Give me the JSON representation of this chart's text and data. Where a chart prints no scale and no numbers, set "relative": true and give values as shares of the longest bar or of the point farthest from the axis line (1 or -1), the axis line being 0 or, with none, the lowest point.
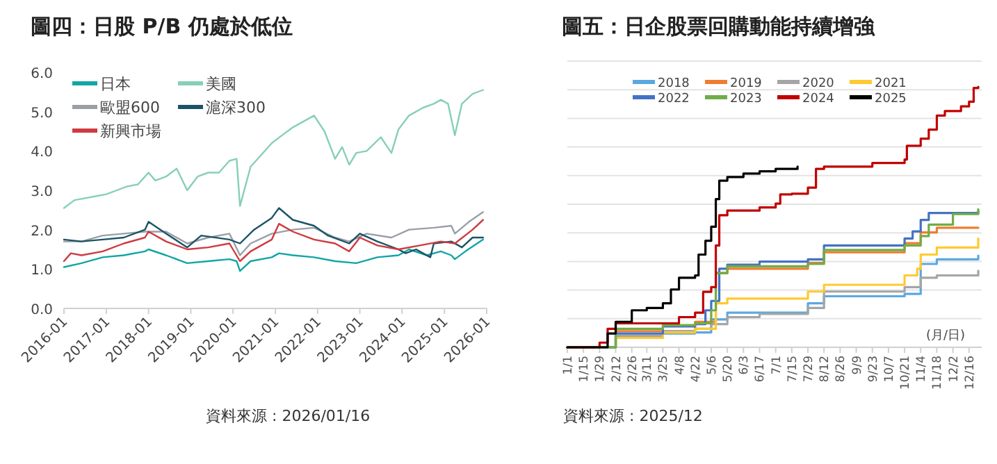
{
  "chart_data": [
    {
      "type": "line",
      "title": "圖四：日股 P/B 仍處於低位",
      "annotations": [
        "資料來源 : 2026/01/16"
      ],
      "legend": "top left",
      "grid": false,
      "xlim": [
        "2016-01",
        "2026-01"
      ],
      "xticks": [
        "2016-01",
        "2017-01",
        "2018-01",
        "2019-01",
        "2020-01",
        "2021-01",
        "2022-01",
        "2023-01",
        "2024-01",
        "2025-01",
        "2026-01"
      ],
      "ylim": [
        0,
        6
      ],
      "yticks": [
        {
          "value": 0,
          "label": "0.0"
        },
        {
          "value": 1,
          "label": "1.0"
        },
        {
          "value": 2,
          "label": "2.0"
        },
        {
          "value": 3,
          "label": "3.0"
        },
        {
          "value": 4,
          "label": "4.0"
        },
        {
          "value": 5,
          "label": "5.0"
        },
        {
          "value": 6,
          "label": "6.0"
        }
      ],
      "series": [
        {
          "name": "日本",
          "color": "#12a5a5",
          "x": [
            "2016-01",
            "2016-06",
            "2016-12",
            "2017-06",
            "2017-12",
            "2018-01",
            "2018-06",
            "2018-12",
            "2019-06",
            "2019-12",
            "2020-02",
            "2020-03",
            "2020-06",
            "2020-12",
            "2021-02",
            "2021-06",
            "2021-12",
            "2022-06",
            "2022-12",
            "2023-06",
            "2023-12",
            "2024-03",
            "2024-08",
            "2024-12",
            "2025-03",
            "2025-04",
            "2025-07",
            "2025-12"
          ],
          "values": [
            1.05,
            1.15,
            1.3,
            1.35,
            1.45,
            1.5,
            1.35,
            1.15,
            1.2,
            1.25,
            1.2,
            0.95,
            1.2,
            1.3,
            1.4,
            1.35,
            1.3,
            1.2,
            1.15,
            1.3,
            1.35,
            1.5,
            1.35,
            1.45,
            1.35,
            1.25,
            1.45,
            1.75
          ]
        },
        {
          "name": "美國",
          "color": "#86cfb8",
          "x": [
            "2016-01",
            "2016-04",
            "2016-07",
            "2016-10",
            "2017-01",
            "2017-04",
            "2017-07",
            "2017-10",
            "2018-01",
            "2018-03",
            "2018-06",
            "2018-09",
            "2018-12",
            "2019-03",
            "2019-06",
            "2019-09",
            "2019-12",
            "2020-02",
            "2020-03",
            "2020-06",
            "2020-09",
            "2020-12",
            "2021-03",
            "2021-06",
            "2021-09",
            "2021-12",
            "2022-03",
            "2022-06",
            "2022-08",
            "2022-10",
            "2022-12",
            "2023-03",
            "2023-07",
            "2023-10",
            "2023-12",
            "2024-03",
            "2024-07",
            "2024-10",
            "2024-12",
            "2025-02",
            "2025-04",
            "2025-06",
            "2025-09",
            "2025-12"
          ],
          "values": [
            2.55,
            2.75,
            2.8,
            2.85,
            2.9,
            3.0,
            3.1,
            3.15,
            3.45,
            3.25,
            3.35,
            3.55,
            3.0,
            3.35,
            3.45,
            3.45,
            3.75,
            3.8,
            2.6,
            3.6,
            3.9,
            4.2,
            4.4,
            4.6,
            4.75,
            4.9,
            4.5,
            3.8,
            4.1,
            3.65,
            3.95,
            4.0,
            4.35,
            3.95,
            4.55,
            4.9,
            5.1,
            5.2,
            5.3,
            5.2,
            4.4,
            5.2,
            5.45,
            5.55
          ]
        },
        {
          "name": "歐盟600",
          "color": "#9a9fa5",
          "x": [
            "2016-01",
            "2016-06",
            "2016-12",
            "2017-06",
            "2017-12",
            "2018-06",
            "2018-12",
            "2019-06",
            "2019-12",
            "2020-03",
            "2020-06",
            "2020-12",
            "2021-06",
            "2021-12",
            "2022-06",
            "2022-10",
            "2023-03",
            "2023-10",
            "2024-03",
            "2024-10",
            "2025-03",
            "2025-04",
            "2025-08",
            "2025-12"
          ],
          "values": [
            1.7,
            1.7,
            1.85,
            1.9,
            1.95,
            1.95,
            1.65,
            1.8,
            1.9,
            1.35,
            1.65,
            1.9,
            2.0,
            2.05,
            1.8,
            1.7,
            1.9,
            1.8,
            2.0,
            2.05,
            2.1,
            1.9,
            2.2,
            2.45
          ]
        },
        {
          "name": "滬深300",
          "color": "#1a5466",
          "x": [
            "2016-01",
            "2016-06",
            "2016-12",
            "2017-06",
            "2017-12",
            "2018-01",
            "2018-06",
            "2018-12",
            "2019-04",
            "2019-12",
            "2020-03",
            "2020-07",
            "2020-12",
            "2021-02",
            "2021-06",
            "2021-12",
            "2022-04",
            "2022-10",
            "2023-01",
            "2023-06",
            "2023-12",
            "2024-02",
            "2024-05",
            "2024-09",
            "2024-10",
            "2025-03",
            "2025-06",
            "2025-09",
            "2025-12"
          ],
          "values": [
            1.75,
            1.7,
            1.75,
            1.8,
            2.0,
            2.2,
            1.9,
            1.55,
            1.85,
            1.75,
            1.65,
            2.0,
            2.3,
            2.55,
            2.25,
            2.1,
            1.85,
            1.65,
            1.9,
            1.7,
            1.5,
            1.4,
            1.5,
            1.3,
            1.65,
            1.7,
            1.55,
            1.8,
            1.8
          ]
        },
        {
          "name": "新興市場",
          "color": "#cf3a40",
          "x": [
            "2016-01",
            "2016-03",
            "2016-06",
            "2016-12",
            "2017-06",
            "2017-12",
            "2018-01",
            "2018-06",
            "2018-12",
            "2019-06",
            "2019-12",
            "2020-03",
            "2020-06",
            "2020-12",
            "2021-02",
            "2021-06",
            "2021-12",
            "2022-06",
            "2022-10",
            "2023-01",
            "2023-06",
            "2023-12",
            "2024-06",
            "2024-12",
            "2025-04",
            "2025-09",
            "2025-12"
          ],
          "values": [
            1.2,
            1.4,
            1.35,
            1.45,
            1.65,
            1.8,
            1.95,
            1.7,
            1.5,
            1.55,
            1.65,
            1.2,
            1.45,
            1.75,
            2.15,
            1.95,
            1.75,
            1.65,
            1.45,
            1.8,
            1.6,
            1.5,
            1.6,
            1.7,
            1.65,
            2.0,
            2.25
          ]
        }
      ]
    },
    {
      "type": "step",
      "title": "圖五：日企股票回購動能持續增強",
      "annotations": [
        "(月/日)",
        "資料來源 : 2025/12"
      ],
      "legend": "top",
      "grid": "y",
      "relative": true,
      "tick_labels": "x",
      "xlim": [
        "--01-01",
        "--12-27"
      ],
      "xticks": [
        {
          "value": "--01-01",
          "label": "1/1"
        },
        {
          "value": "--01-15",
          "label": "1/15"
        },
        {
          "value": "--01-29",
          "label": "1/29"
        },
        {
          "value": "--02-12",
          "label": "2/12"
        },
        {
          "value": "--02-26",
          "label": "2/26"
        },
        {
          "value": "--03-11",
          "label": "3/11"
        },
        {
          "value": "--03-25",
          "label": "3/25"
        },
        {
          "value": "--04-08",
          "label": "4/8"
        },
        {
          "value": "--04-22",
          "label": "4/22"
        },
        {
          "value": "--05-06",
          "label": "5/6"
        },
        {
          "value": "--05-20",
          "label": "5/20"
        },
        {
          "value": "--06-03",
          "label": "6/3"
        },
        {
          "value": "--06-17",
          "label": "6/17"
        },
        {
          "value": "--07-01",
          "label": "7/1"
        },
        {
          "value": "--07-15",
          "label": "7/15"
        },
        {
          "value": "--07-29",
          "label": "7/29"
        },
        {
          "value": "--08-12",
          "label": "8/12"
        },
        {
          "value": "--08-26",
          "label": "8/26"
        },
        {
          "value": "--09-09",
          "label": "9/9"
        },
        {
          "value": "--09-23",
          "label": "9/23"
        },
        {
          "value": "--10-07",
          "label": "10/7"
        },
        {
          "value": "--10-21",
          "label": "10/21"
        },
        {
          "value": "--11-04",
          "label": "11/4"
        },
        {
          "value": "--11-18",
          "label": "11/18"
        },
        {
          "value": "--12-02",
          "label": "12/2"
        },
        {
          "value": "--12-16",
          "label": "12/16"
        }
      ],
      "series": [
        {
          "name": "2018",
          "color": "#5ba8e0",
          "x": [
            "--01-01",
            "--01-29",
            "--02-12",
            "--03-25",
            "--04-22",
            "--05-06",
            "--05-20",
            "--07-29",
            "--08-12",
            "--10-21",
            "--11-04",
            "--11-18",
            "--12-24"
          ],
          "values": [
            0,
            0,
            0.036,
            0.053,
            0.057,
            0.107,
            0.133,
            0.169,
            0.196,
            0.205,
            0.32,
            0.338,
            0.352
          ]
        },
        {
          "name": "2019",
          "color": "#ef7d31",
          "x": [
            "--01-01",
            "--01-29",
            "--02-12",
            "--04-22",
            "--05-10",
            "--05-20",
            "--07-29",
            "--08-12",
            "--10-21",
            "--11-04",
            "--11-18",
            "--12-24"
          ],
          "values": [
            0,
            0,
            0.062,
            0.098,
            0.285,
            0.302,
            0.324,
            0.365,
            0.4,
            0.441,
            0.459,
            0.459
          ]
        },
        {
          "name": "2020",
          "color": "#a5a5a5",
          "x": [
            "--01-01",
            "--01-29",
            "--02-12",
            "--03-25",
            "--04-22",
            "--05-06",
            "--05-20",
            "--06-17",
            "--07-29",
            "--08-12",
            "--10-21",
            "--11-04",
            "--11-18",
            "--12-24"
          ],
          "values": [
            0,
            0,
            0.044,
            0.062,
            0.071,
            0.089,
            0.116,
            0.128,
            0.151,
            0.214,
            0.231,
            0.267,
            0.276,
            0.294
          ]
        },
        {
          "name": "2021",
          "color": "#ffc931",
          "x": [
            "--01-01",
            "--01-29",
            "--02-12",
            "--03-25",
            "--04-22",
            "--05-10",
            "--05-20",
            "--07-29",
            "--08-12",
            "--10-21",
            "--11-01",
            "--11-04",
            "--11-18",
            "--12-24"
          ],
          "values": [
            0,
            0,
            0.036,
            0.057,
            0.071,
            0.169,
            0.187,
            0.214,
            0.24,
            0.276,
            0.302,
            0.356,
            0.383,
            0.418
          ]
        },
        {
          "name": "2022",
          "color": "#4472c4",
          "x": [
            "--01-01",
            "--01-29",
            "--02-12",
            "--03-25",
            "--04-22",
            "--05-01",
            "--05-06",
            "--05-13",
            "--05-20",
            "--06-17",
            "--07-29",
            "--08-12",
            "--10-21",
            "--10-28",
            "--11-04",
            "--11-11",
            "--12-24"
          ],
          "values": [
            0,
            0,
            0.053,
            0.08,
            0.089,
            0.142,
            0.178,
            0.302,
            0.317,
            0.329,
            0.338,
            0.391,
            0.418,
            0.445,
            0.489,
            0.516,
            0.523
          ]
        },
        {
          "name": "2023",
          "color": "#70ad47",
          "x": [
            "--01-01",
            "--01-29",
            "--02-12",
            "--03-25",
            "--04-22",
            "--05-06",
            "--05-10",
            "--05-20",
            "--07-29",
            "--08-12",
            "--10-21",
            "--11-04",
            "--11-11",
            "--12-02",
            "--12-24"
          ],
          "values": [
            0,
            0,
            0.071,
            0.085,
            0.092,
            0.142,
            0.285,
            0.311,
            0.32,
            0.374,
            0.391,
            0.427,
            0.471,
            0.512,
            0.53
          ]
        },
        {
          "name": "2024",
          "color": "#c00000",
          "x": [
            "--01-01",
            "--01-29",
            "--02-05",
            "--02-12",
            "--04-08",
            "--04-22",
            "--04-29",
            "--05-06",
            "--05-10",
            "--05-13",
            "--05-20",
            "--06-17",
            "--07-01",
            "--07-05",
            "--07-15",
            "--07-29",
            "--08-05",
            "--08-12",
            "--09-23",
            "--10-21",
            "--10-23",
            "--11-04",
            "--11-11",
            "--11-18",
            "--11-25",
            "--12-09",
            "--12-16",
            "--12-20",
            "--12-24"
          ],
          "values": [
            0,
            0.018,
            0.071,
            0.092,
            0.116,
            0.133,
            0.213,
            0.231,
            0.391,
            0.507,
            0.525,
            0.537,
            0.552,
            0.587,
            0.59,
            0.613,
            0.685,
            0.694,
            0.708,
            0.721,
            0.774,
            0.801,
            0.836,
            0.89,
            0.907,
            0.925,
            0.943,
            0.996,
            1
          ]
        },
        {
          "name": "2025",
          "color": "#000000",
          "x": [
            "--01-01",
            "--01-22",
            "--02-05",
            "--02-12",
            "--02-26",
            "--03-11",
            "--03-25",
            "--04-01",
            "--04-08",
            "--04-22",
            "--04-25",
            "--05-01",
            "--05-06",
            "--05-10",
            "--05-13",
            "--05-20",
            "--06-03",
            "--06-17",
            "--07-01",
            "--07-20"
          ],
          "values": [
            0,
            0,
            0.053,
            0.098,
            0.142,
            0.151,
            0.169,
            0.222,
            0.267,
            0.276,
            0.356,
            0.409,
            0.463,
            0.569,
            0.64,
            0.654,
            0.667,
            0.676,
            0.685,
            0.694
          ]
        }
      ]
    }
  ]
}
